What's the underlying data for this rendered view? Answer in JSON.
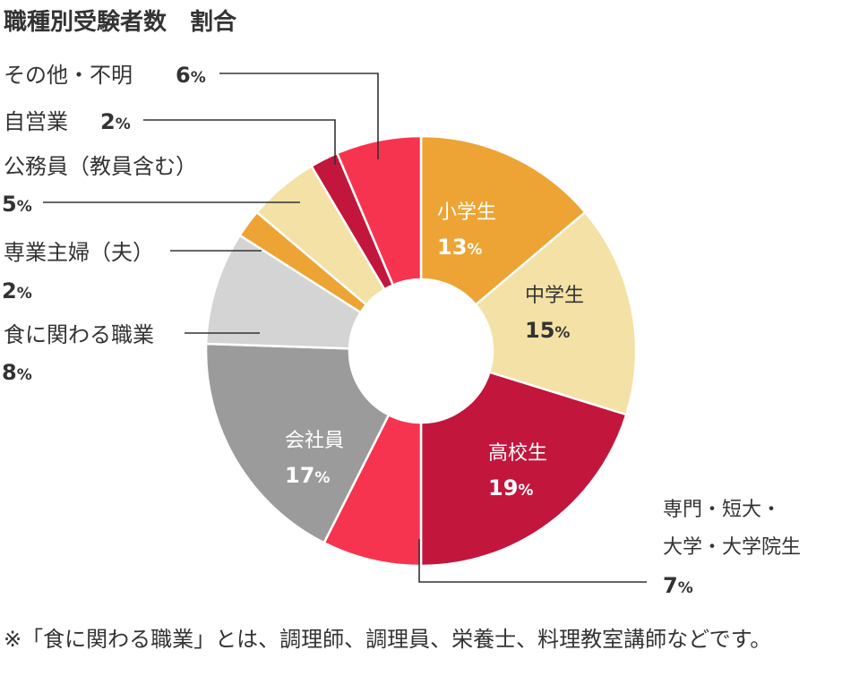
{
  "title": "職種別受験者数　割合",
  "note": "※「食に関わる職業」とは、調理師、調理員、栄養士、料理教室講師などです。",
  "chart_data": {
    "type": "pie",
    "title": "職種別受験者数　割合",
    "unit": "%",
    "slices": [
      {
        "label": "小学生",
        "value": 13,
        "color": "#eda434"
      },
      {
        "label": "中学生",
        "value": 15,
        "color": "#f3e1a6"
      },
      {
        "label": "高校生",
        "value": 19,
        "color": "#c2163c"
      },
      {
        "label": "専門・短大・大学・大学院生",
        "lines": [
          "専門・短大・",
          "大学・大学院生"
        ],
        "value": 7,
        "color": "#f7344f"
      },
      {
        "label": "会社員",
        "value": 17,
        "color": "#9b9b9b"
      },
      {
        "label": "食に関わる職業",
        "value": 8,
        "color": "#d4d4d4"
      },
      {
        "label": "専業主婦（夫）",
        "value": 2,
        "color": "#eda434"
      },
      {
        "label": "公務員（教員含む）",
        "value": 5,
        "color": "#f3e1a6"
      },
      {
        "label": "自営業",
        "value": 2,
        "color": "#c2163c"
      },
      {
        "label": "その他・不明",
        "value": 6,
        "color": "#f7344f"
      }
    ]
  }
}
